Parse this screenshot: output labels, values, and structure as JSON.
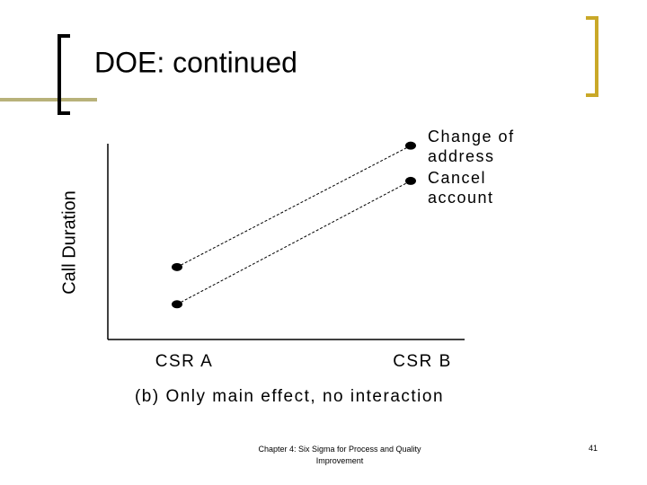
{
  "slide": {
    "title": "DOE: continued",
    "footer": "Chapter 4: Six Sigma for Process and Quality Improvement",
    "page_number": "41"
  },
  "chart_data": {
    "type": "line",
    "x_label": "(b) Only main effect, no interaction",
    "y_label": "Call Duration",
    "categories": [
      "CSR A",
      "CSR B"
    ],
    "ylim": [
      0,
      10
    ],
    "series": [
      {
        "name": "Change of address",
        "color": "#000000",
        "values": [
          3.7,
          9.9
        ]
      },
      {
        "name": "Cancel account",
        "color": "#000000",
        "values": [
          1.8,
          8.1
        ]
      }
    ]
  }
}
